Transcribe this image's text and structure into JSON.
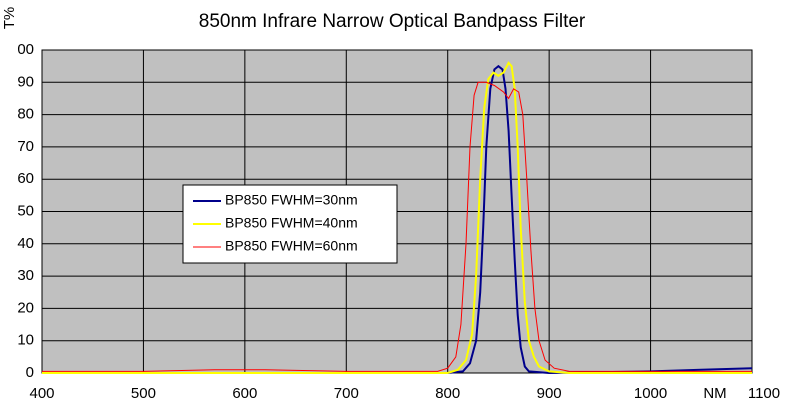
{
  "chart_data": {
    "type": "line",
    "title": "850nm Infrare Narrow Optical Bandpass Filter",
    "x_label": "NM",
    "y_label": "T%",
    "xlim": [
      400,
      1100
    ],
    "xticks": [
      400,
      500,
      600,
      700,
      800,
      900,
      1000,
      1100
    ],
    "ylim": [
      0,
      100
    ],
    "yticks": [
      0,
      10,
      20,
      30,
      40,
      50,
      60,
      70,
      80,
      90,
      {
        "value": 100,
        "label": "00"
      }
    ],
    "grid": true,
    "legend": "left",
    "series": [
      {
        "name": "BP850  FWHM=30nm",
        "color": "#00008b",
        "x": [
          400,
          600,
          800,
          815,
          822,
          828,
          832,
          835,
          838,
          842,
          846,
          850,
          854,
          857,
          860,
          863,
          866,
          869,
          872,
          876,
          880,
          900,
          1000,
          1050,
          1100
        ],
        "values": [
          0,
          0,
          0,
          0.5,
          3,
          10,
          25,
          45,
          70,
          88,
          94,
          95,
          94,
          88,
          75,
          55,
          35,
          18,
          8,
          2,
          0.5,
          0,
          0.5,
          1,
          1.5
        ]
      },
      {
        "name": "BP850  FWHM=40nm",
        "color": "#ffff00",
        "x": [
          400,
          700,
          800,
          810,
          818,
          824,
          828,
          832,
          836,
          840,
          845,
          850,
          855,
          860,
          863,
          866,
          869,
          872,
          876,
          880,
          885,
          890,
          900,
          920,
          1100
        ],
        "values": [
          0,
          0,
          0,
          1,
          4,
          12,
          30,
          60,
          82,
          91,
          93,
          92,
          93,
          96,
          95,
          88,
          70,
          45,
          22,
          10,
          5,
          2,
          0.5,
          0,
          0
        ]
      },
      {
        "name": "BP850  FWHM=60nm",
        "color": "#ff0000",
        "x": [
          400,
          500,
          570,
          620,
          700,
          790,
          800,
          808,
          813,
          818,
          822,
          826,
          830,
          838,
          846,
          855,
          860,
          865,
          870,
          874,
          878,
          882,
          886,
          890,
          896,
          905,
          920,
          1000,
          1100
        ],
        "values": [
          0.5,
          0.5,
          1,
          1,
          0.5,
          0.5,
          1.5,
          5,
          15,
          40,
          70,
          86,
          90,
          90,
          89,
          87,
          85,
          88,
          87,
          80,
          60,
          38,
          20,
          10,
          4,
          1.5,
          0.5,
          0.5,
          0.5
        ]
      }
    ]
  }
}
